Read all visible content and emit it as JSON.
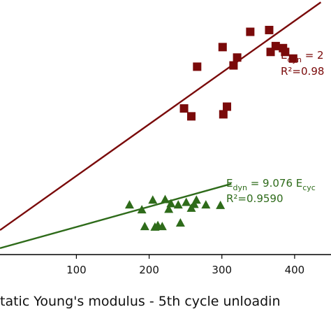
{
  "chart_data": {
    "type": "scatter",
    "xlabel": "tatic Young's modulus - 5th cycle unloadin",
    "ylabel": "",
    "xlim": [
      -5,
      450
    ],
    "ylim": [
      0,
      100
    ],
    "x_ticks": [
      {
        "value": 100,
        "label": "100"
      },
      {
        "value": 200,
        "label": "200"
      },
      {
        "value": 300,
        "label": "300"
      },
      {
        "value": 400,
        "label": "400"
      }
    ],
    "grid": false,
    "series": [
      {
        "marker": "square",
        "color": "#7a0a0a",
        "points": [
          {
            "x": 248,
            "y": 57.4
          },
          {
            "x": 258,
            "y": 54.3
          },
          {
            "x": 266,
            "y": 73.8
          },
          {
            "x": 301,
            "y": 81.5
          },
          {
            "x": 302,
            "y": 55.1
          },
          {
            "x": 307,
            "y": 58.1
          },
          {
            "x": 316,
            "y": 74.3
          },
          {
            "x": 321,
            "y": 77.4
          },
          {
            "x": 339,
            "y": 87.5
          },
          {
            "x": 365,
            "y": 88.2
          },
          {
            "x": 367,
            "y": 79.6
          },
          {
            "x": 384,
            "y": 81.1
          },
          {
            "x": 374,
            "y": 81.9
          },
          {
            "x": 387,
            "y": 79.6
          },
          {
            "x": 398,
            "y": 77.0
          }
        ],
        "fit": {
          "x": [
            -5,
            436
          ],
          "y": [
            9.6,
            99.1
          ]
        },
        "annotation": [
          "E",
          "dyn",
          " = 2",
          "R²=0.98"
        ]
      },
      {
        "marker": "triangle",
        "color": "#2e6b1a",
        "points": [
          {
            "x": 173,
            "y": 19.6
          },
          {
            "x": 190,
            "y": 17.7
          },
          {
            "x": 194,
            "y": 11.1
          },
          {
            "x": 205,
            "y": 21.5
          },
          {
            "x": 208,
            "y": 10.9
          },
          {
            "x": 212,
            "y": 11.5
          },
          {
            "x": 218,
            "y": 11.1
          },
          {
            "x": 222,
            "y": 21.7
          },
          {
            "x": 227,
            "y": 17.9
          },
          {
            "x": 230,
            "y": 20.1
          },
          {
            "x": 240,
            "y": 19.6
          },
          {
            "x": 243,
            "y": 12.5
          },
          {
            "x": 251,
            "y": 20.6
          },
          {
            "x": 258,
            "y": 18.3
          },
          {
            "x": 262,
            "y": 19.8
          },
          {
            "x": 265,
            "y": 21.5
          },
          {
            "x": 278,
            "y": 19.6
          },
          {
            "x": 298,
            "y": 19.4
          }
        ],
        "fit": {
          "x": [
            -5,
            313
          ],
          "y": [
            2.5,
            27.8
          ]
        },
        "annotation": [
          "E",
          "dyn",
          " = 9.076 E",
          "cyc",
          "R²=0.9590"
        ]
      }
    ]
  }
}
